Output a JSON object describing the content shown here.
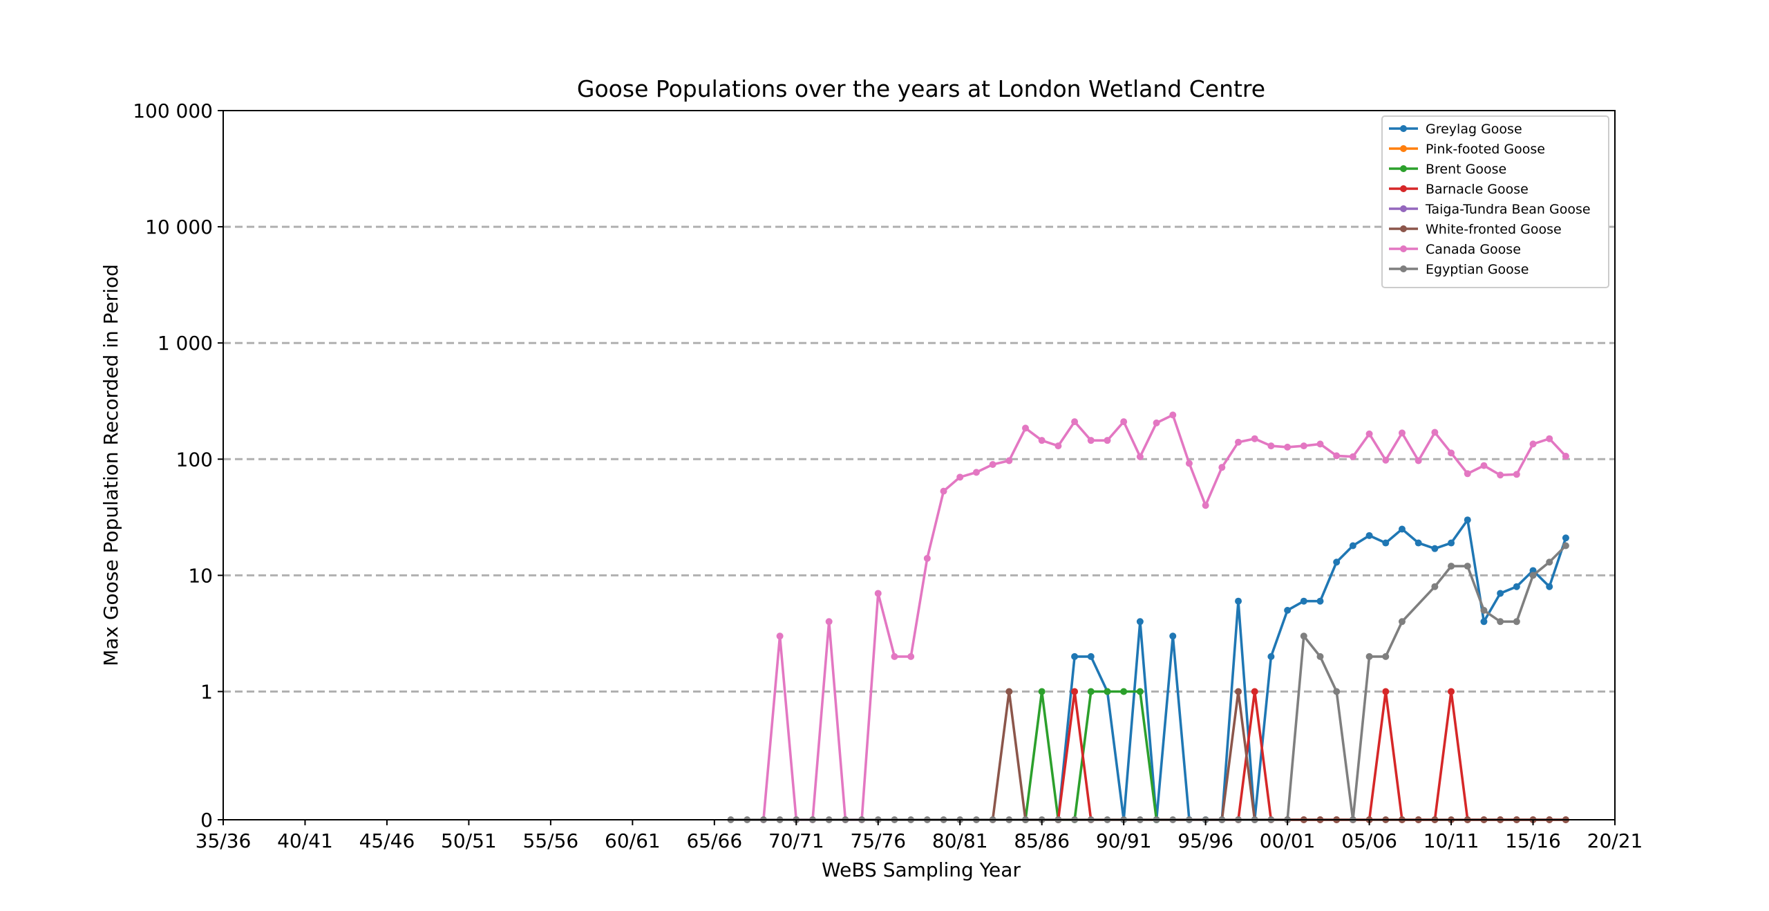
{
  "chart_data": {
    "type": "line",
    "title": "Goose Populations over the years at London Wetland Centre",
    "xlabel": "WeBS Sampling Year",
    "ylabel": "Max Goose Population Recorded in Period",
    "y_scale": "symlog",
    "ylim": [
      0,
      100000
    ],
    "xlim": [
      1935,
      2020
    ],
    "y_ticks": [
      {
        "value": 0,
        "label": "0"
      },
      {
        "value": 1,
        "label": "1"
      },
      {
        "value": 10,
        "label": "10"
      },
      {
        "value": 100,
        "label": "100"
      },
      {
        "value": 1000,
        "label": "1 000"
      },
      {
        "value": 10000,
        "label": "10 000"
      },
      {
        "value": 100000,
        "label": "100 000"
      }
    ],
    "x_ticks": [
      {
        "value": 1935,
        "label": "35/36"
      },
      {
        "value": 1940,
        "label": "40/41"
      },
      {
        "value": 1945,
        "label": "45/46"
      },
      {
        "value": 1950,
        "label": "50/51"
      },
      {
        "value": 1955,
        "label": "55/56"
      },
      {
        "value": 1960,
        "label": "60/61"
      },
      {
        "value": 1965,
        "label": "65/66"
      },
      {
        "value": 1970,
        "label": "70/71"
      },
      {
        "value": 1975,
        "label": "75/76"
      },
      {
        "value": 1980,
        "label": "80/81"
      },
      {
        "value": 1985,
        "label": "85/86"
      },
      {
        "value": 1990,
        "label": "90/91"
      },
      {
        "value": 1995,
        "label": "95/96"
      },
      {
        "value": 2000,
        "label": "00/01"
      },
      {
        "value": 2005,
        "label": "05/06"
      },
      {
        "value": 2010,
        "label": "10/11"
      },
      {
        "value": 2015,
        "label": "15/16"
      },
      {
        "value": 2020,
        "label": "20/21"
      }
    ],
    "grid": "horizontal dashed",
    "legend_position": "top-right",
    "series": [
      {
        "name": "Greylag Goose",
        "color": "#1f77b4",
        "x": [
          1986,
          1987,
          1988,
          1989,
          1990,
          1991,
          1992,
          1993,
          1994,
          1995,
          1996,
          1997,
          1998,
          1999,
          2000,
          2001,
          2002,
          2003,
          2004,
          2005,
          2006,
          2007,
          2008,
          2009,
          2010,
          2011,
          2012,
          2013,
          2014,
          2015,
          2016,
          2017
        ],
        "y": [
          0,
          2,
          2,
          1,
          0,
          4,
          0,
          3,
          0,
          0,
          0,
          6,
          0,
          2,
          5,
          6,
          6,
          13,
          18,
          22,
          19,
          25,
          19,
          17,
          19,
          30,
          4,
          7,
          8,
          11,
          8,
          21
        ]
      },
      {
        "name": "Pink-footed Goose",
        "color": "#ff7f0e",
        "x": [],
        "y": []
      },
      {
        "name": "Brent Goose",
        "color": "#2ca02c",
        "x": [
          1984,
          1985,
          1986,
          1987,
          1988,
          1989,
          1990,
          1991,
          1992
        ],
        "y": [
          0,
          1,
          0,
          0,
          1,
          1,
          1,
          1,
          0
        ]
      },
      {
        "name": "Barnacle Goose",
        "color": "#d62728",
        "x": [
          1986,
          1987,
          1988,
          1997,
          1998,
          1999,
          2000,
          2001,
          2002,
          2003,
          2004,
          2005,
          2006,
          2007,
          2008,
          2009,
          2010,
          2011,
          2012,
          2013,
          2014,
          2015,
          2016,
          2017
        ],
        "y": [
          0,
          1,
          0,
          0,
          1,
          0,
          0,
          0,
          0,
          0,
          0,
          0,
          1,
          0,
          0,
          0,
          1,
          0,
          0,
          0,
          0,
          0,
          0,
          0
        ]
      },
      {
        "name": "Taiga-Tundra Bean Goose",
        "color": "#9467bd",
        "x": [],
        "y": []
      },
      {
        "name": "White-fronted Goose",
        "color": "#8c564b",
        "x": [
          1982,
          1983,
          1984,
          1996,
          1997,
          1998,
          2000,
          2001,
          2002,
          2003,
          2004,
          2005,
          2006,
          2007,
          2008,
          2009,
          2010,
          2011,
          2012,
          2013,
          2014,
          2015,
          2016,
          2017
        ],
        "y": [
          0,
          1,
          0,
          0,
          1,
          0,
          0,
          0,
          0,
          0,
          0,
          0,
          0,
          0,
          0,
          0,
          0,
          0,
          0,
          0,
          0,
          0,
          0,
          0
        ]
      },
      {
        "name": "Canada Goose",
        "color": "#e377c2",
        "x": [
          1968,
          1969,
          1970,
          1971,
          1972,
          1973,
          1974,
          1975,
          1976,
          1977,
          1978,
          1979,
          1980,
          1981,
          1982,
          1983,
          1984,
          1985,
          1986,
          1987,
          1988,
          1989,
          1990,
          1991,
          1992,
          1993,
          1994,
          1995,
          1996,
          1997,
          1998,
          1999,
          2000,
          2001,
          2002,
          2003,
          2004,
          2005,
          2006,
          2007,
          2008,
          2009,
          2010,
          2011,
          2012,
          2013,
          2014,
          2015,
          2016,
          2017
        ],
        "y": [
          0,
          3,
          0,
          0,
          4,
          0,
          0,
          7,
          2,
          2,
          14,
          53,
          70,
          77,
          90,
          97,
          185,
          145,
          130,
          210,
          145,
          145,
          210,
          105,
          205,
          240,
          92,
          40,
          85,
          140,
          150,
          130,
          127,
          130,
          135,
          107,
          105,
          165,
          98,
          168,
          97,
          170,
          113,
          75,
          88,
          73,
          74,
          135,
          150,
          106
        ]
      },
      {
        "name": "Egyptian Goose",
        "color": "#7f7f7f",
        "x": [
          1966,
          1967,
          1968,
          1969,
          1970,
          1971,
          1972,
          1973,
          1974,
          1975,
          1976,
          1977,
          1978,
          1979,
          1980,
          1981,
          1982,
          1983,
          1984,
          1985,
          1986,
          1987,
          1988,
          1989,
          1990,
          1991,
          1992,
          1993,
          1994,
          1995,
          1996,
          1997,
          1998,
          1999,
          2000,
          2001,
          2002,
          2003,
          2004,
          2005,
          2006,
          2007,
          2009,
          2010,
          2011,
          2012,
          2013,
          2014,
          2015,
          2016,
          2017
        ],
        "y": [
          0,
          0,
          0,
          0,
          0,
          0,
          0,
          0,
          0,
          0,
          0,
          0,
          0,
          0,
          0,
          0,
          0,
          0,
          0,
          0,
          0,
          0,
          0,
          0,
          0,
          0,
          0,
          0,
          0,
          0,
          0,
          0,
          0,
          0,
          0,
          3,
          2,
          1,
          0,
          2,
          2,
          4,
          8,
          12,
          12,
          5,
          4,
          4,
          10,
          13,
          18
        ]
      }
    ]
  }
}
